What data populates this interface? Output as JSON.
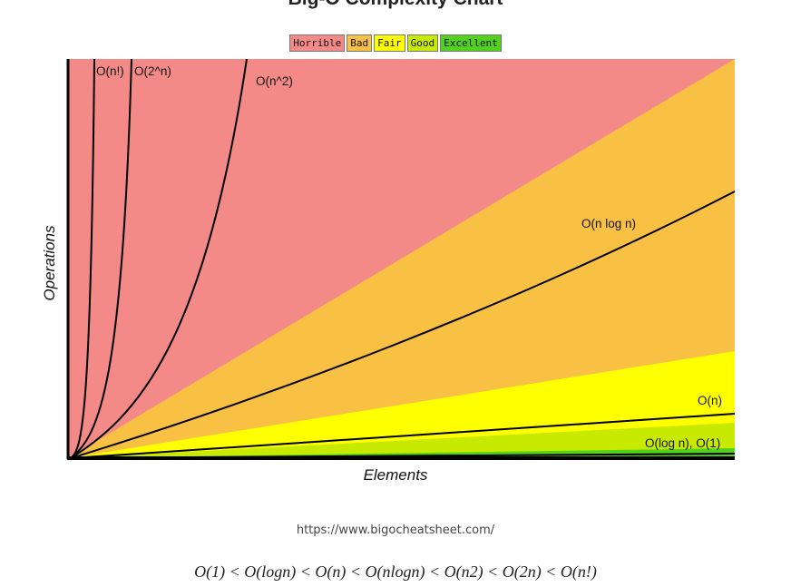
{
  "chart_data": {
    "type": "area",
    "title": "Big-O Complexity Chart",
    "xlabel": "Elements",
    "ylabel": "Operations",
    "legend_position": "top-center",
    "legend": [
      {
        "label": "Horrible",
        "color": "#f48a88"
      },
      {
        "label": "Bad",
        "color": "#f9c144"
      },
      {
        "label": "Fair",
        "color": "#ffff00"
      },
      {
        "label": "Good",
        "color": "#c8ea00"
      },
      {
        "label": "Excellent",
        "color": "#53d11f"
      }
    ],
    "curves": [
      {
        "label": "O(n!)"
      },
      {
        "label": "O(2^n)"
      },
      {
        "label": "O(n^2)"
      },
      {
        "label": "O(n log n)"
      },
      {
        "label": "O(n)"
      },
      {
        "label": "O(log n), O(1)"
      }
    ]
  },
  "footer": {
    "source_url": "https://www.bigocheatsheet.com/",
    "formula": "O(1) < O(logn) < O(n) < O(nlogn) < O(n2) < O(2n) < O(n!)"
  }
}
